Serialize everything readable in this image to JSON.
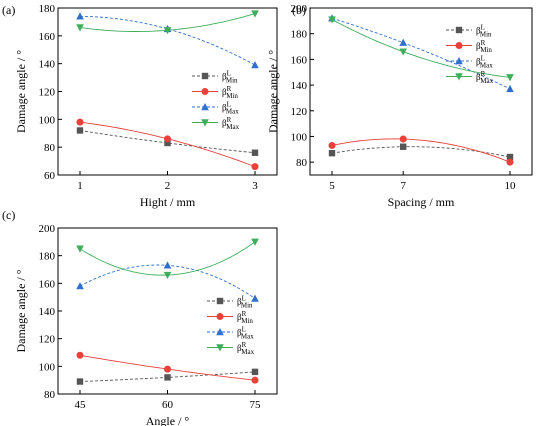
{
  "figure": {
    "panels": [
      "(a)",
      "(b)",
      "(c)"
    ]
  },
  "colors": {
    "beta_l_min": "#555555",
    "beta_r_min": "#e8413a",
    "beta_l_max": "#2f6fd0",
    "beta_r_max": "#3fae5a"
  },
  "legend_labels": [
    {
      "base": "β",
      "sup": "L",
      "sub": "Min"
    },
    {
      "base": "β",
      "sup": "R",
      "sub": "Min"
    },
    {
      "base": "β",
      "sup": "L",
      "sub": "Max"
    },
    {
      "base": "β",
      "sup": "R",
      "sub": "Max"
    }
  ],
  "chart_data": [
    {
      "panel": "(a)",
      "type": "line",
      "xlabel": "Hight / mm",
      "ylabel": "Damage angle / °",
      "x": [
        1,
        2,
        3
      ],
      "x_ticks": [
        "1",
        "2",
        "3"
      ],
      "ylim": [
        60,
        180
      ],
      "y_ticks": [
        60,
        80,
        100,
        120,
        140,
        160,
        180
      ],
      "legend_position": "right",
      "series": [
        {
          "name": "βLMin",
          "marker": "square",
          "dash": "dash",
          "values": [
            92,
            83,
            76
          ]
        },
        {
          "name": "βRMin",
          "marker": "circle",
          "dash": "solid",
          "values": [
            98,
            86,
            66
          ]
        },
        {
          "name": "βLMax",
          "marker": "triangle-up",
          "dash": "dash",
          "values": [
            174,
            165,
            139
          ]
        },
        {
          "name": "βRMax",
          "marker": "triangle-down",
          "dash": "solid",
          "values": [
            166,
            164,
            176
          ]
        }
      ]
    },
    {
      "panel": "(b)",
      "type": "line",
      "xlabel": "Spacing / mm",
      "ylabel": "Damage angle / °",
      "x": [
        5,
        7,
        10
      ],
      "x_ticks": [
        "5",
        "7",
        "10"
      ],
      "ylim": [
        70,
        200
      ],
      "y_ticks": [
        80,
        100,
        120,
        140,
        160,
        180,
        200
      ],
      "legend_position": "right",
      "series": [
        {
          "name": "βLMin",
          "marker": "square",
          "dash": "dash",
          "values": [
            87,
            92,
            84
          ]
        },
        {
          "name": "βRMin",
          "marker": "circle",
          "dash": "solid",
          "values": [
            93,
            98,
            80
          ]
        },
        {
          "name": "βLMax",
          "marker": "triangle-up",
          "dash": "dash",
          "values": [
            192,
            173,
            137
          ]
        },
        {
          "name": "βRMax",
          "marker": "triangle-down",
          "dash": "solid",
          "values": [
            191,
            166,
            146
          ]
        }
      ]
    },
    {
      "panel": "(c)",
      "type": "line",
      "xlabel": "Angle / °",
      "ylabel": "Damage angle / °",
      "x": [
        45,
        60,
        75
      ],
      "x_ticks": [
        "45",
        "60",
        "75"
      ],
      "ylim": [
        80,
        200
      ],
      "y_ticks": [
        80,
        100,
        120,
        140,
        160,
        180,
        200
      ],
      "legend_position": "right",
      "series": [
        {
          "name": "βLMin",
          "marker": "square",
          "dash": "dash",
          "values": [
            89,
            92,
            96
          ]
        },
        {
          "name": "βRMin",
          "marker": "circle",
          "dash": "solid",
          "values": [
            108,
            98,
            90
          ]
        },
        {
          "name": "βLMax",
          "marker": "triangle-up",
          "dash": "dash",
          "values": [
            158,
            173,
            149
          ]
        },
        {
          "name": "βRMax",
          "marker": "triangle-down",
          "dash": "solid",
          "values": [
            185,
            166,
            190
          ]
        }
      ]
    }
  ]
}
